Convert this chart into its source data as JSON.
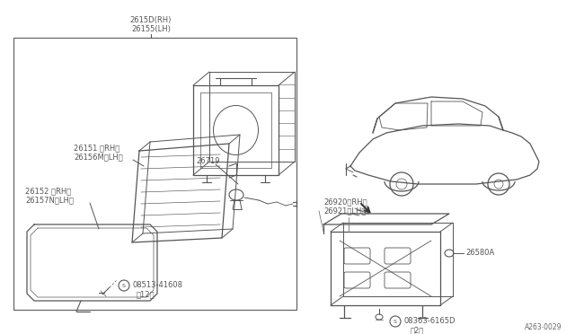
{
  "bg_color": "#ffffff",
  "line_color": "#555555",
  "labels": {
    "top_label1": "2615D(RH)",
    "top_label2": "26155(LH)",
    "label_26151": "26151 〈RH〉",
    "label_26156": "26156M〈LH〉",
    "label_26152": "26152 〈RH〉",
    "label_26157": "26157N〈LH〉",
    "label_26719": "26719",
    "label_screw1": "08513-41608",
    "label_screw1b": "（12）",
    "label_26920": "26920〈RH〉",
    "label_26921": "26921〈LH〉",
    "label_26580": "26580A",
    "label_screw2": "08363-6165D",
    "label_screw2b": "（2）",
    "ref_code": "A263⋅0029"
  }
}
